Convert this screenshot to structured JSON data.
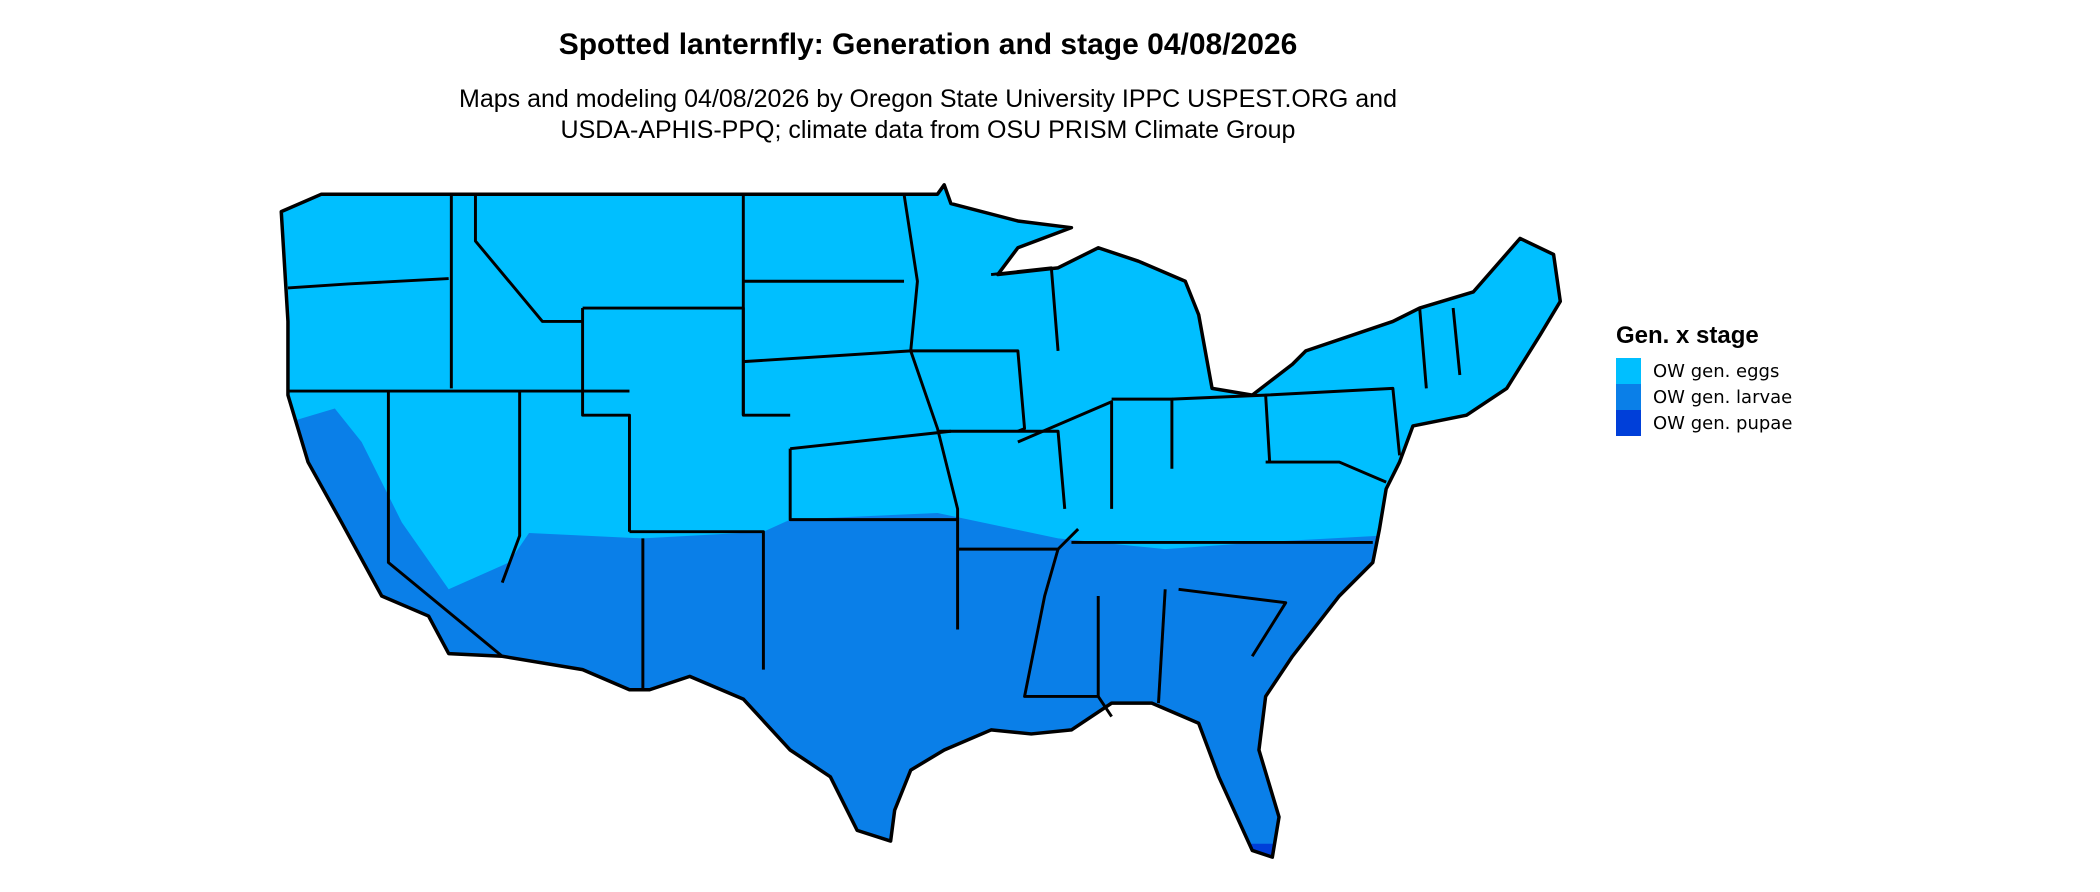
{
  "chart_data": {
    "type": "heatmap",
    "title": "Spotted lanternfly: Generation and stage 04/08/2026",
    "subtitle_lines": [
      "Maps and modeling 04/08/2026 by Oregon State University IPPC USPEST.ORG and",
      "USDA-APHIS-PPQ; climate data from OSU PRISM Climate Group"
    ],
    "legend": {
      "title": "Gen. x stage",
      "placement": "right",
      "entries": [
        {
          "label": "OW gen. eggs",
          "color": "#00BFFF"
        },
        {
          "label": "OW gen. larvae",
          "color": "#0A7FE8"
        },
        {
          "label": "OW gen. pupae",
          "color": "#003FD9"
        }
      ]
    },
    "regions": {
      "eggs": "northern and central contiguous US",
      "larvae": "southern US (CA coast/desert, AZ, TX, OK, Southeast)",
      "pupae": "southern tip of Florida"
    }
  }
}
